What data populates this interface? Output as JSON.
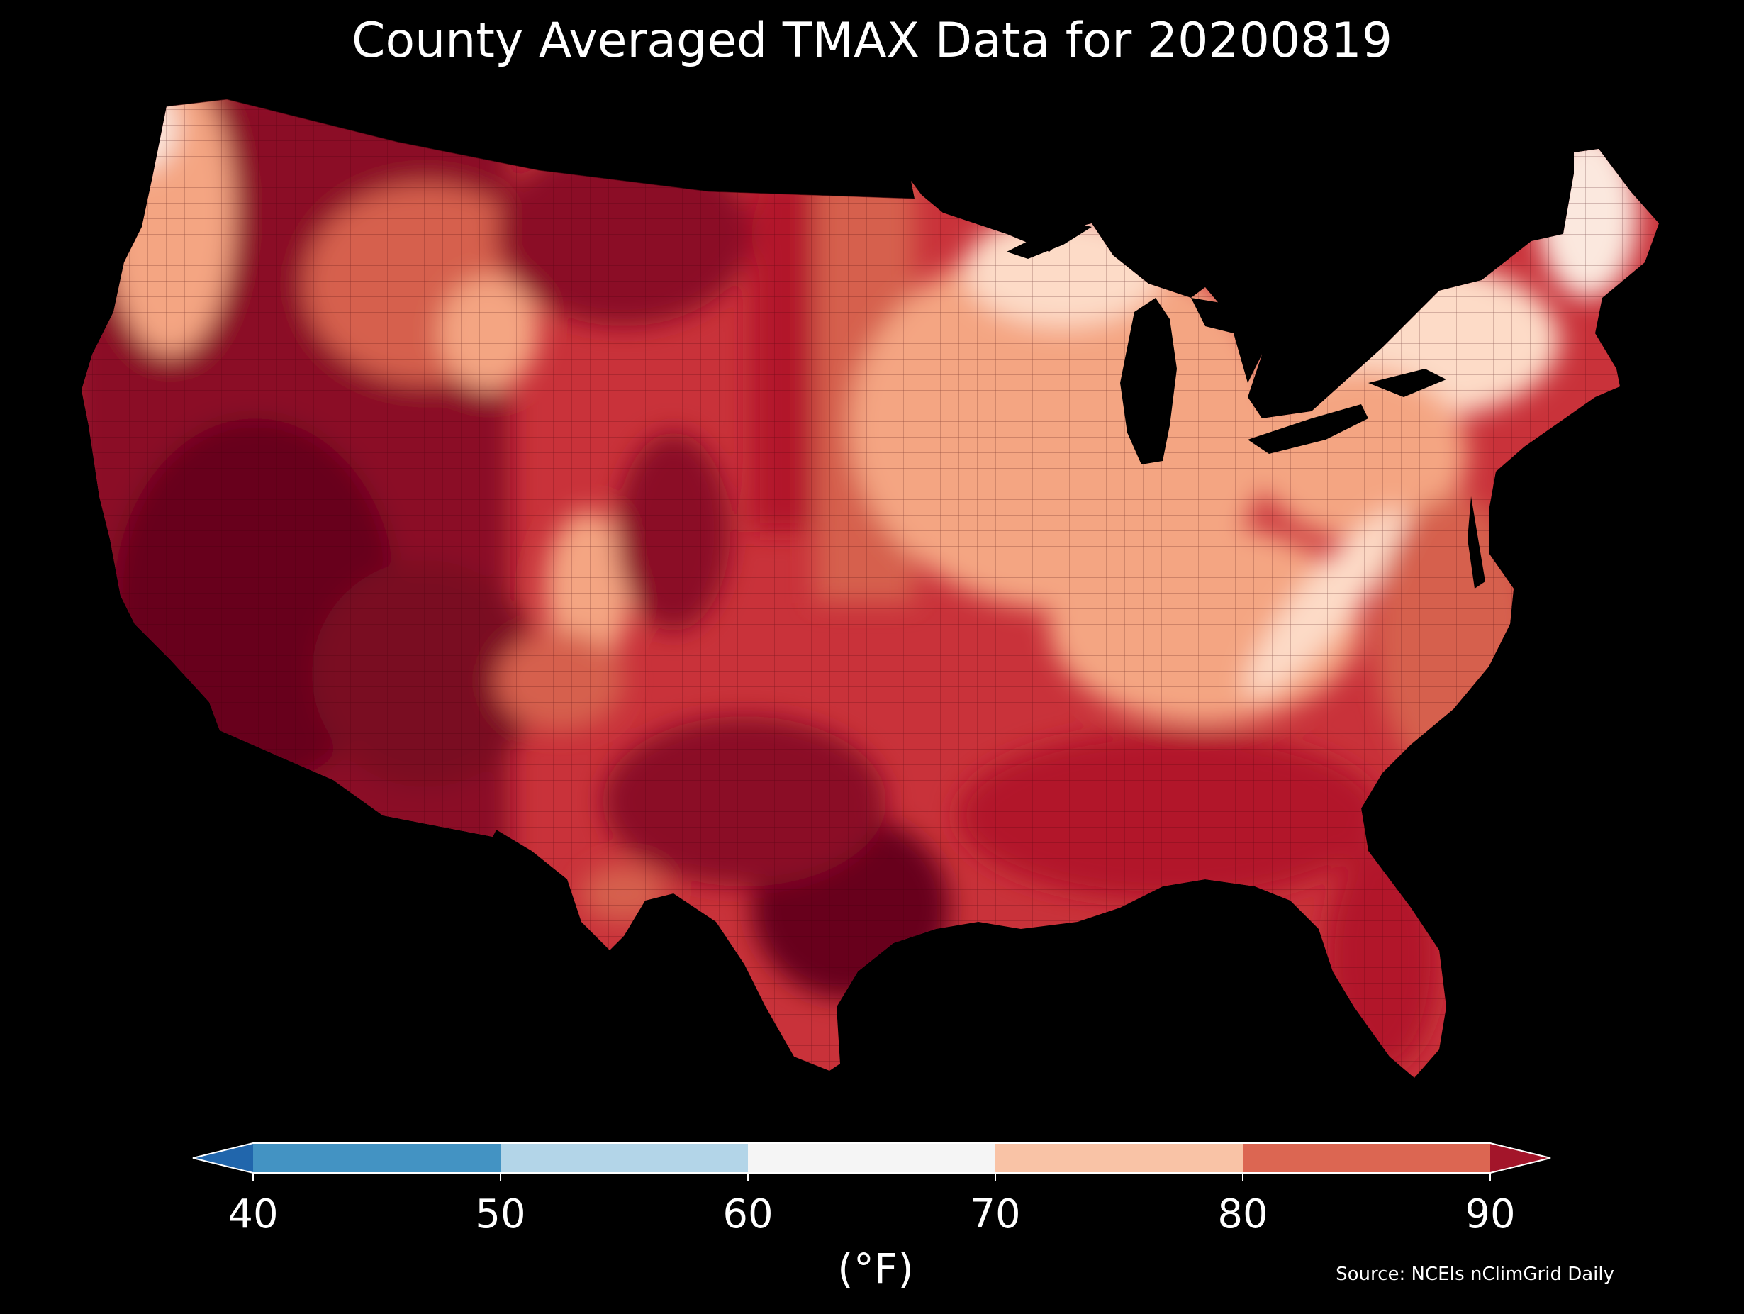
{
  "title": "County Averaged TMAX Data for 20200819",
  "source": "Source: NCEIs nClimGrid Daily",
  "colorbar": {
    "unit_label": "(°F)",
    "ticks": [
      "40",
      "50",
      "60",
      "70",
      "80",
      "90"
    ],
    "bins": [
      {
        "range": "<40",
        "color": "#2166ac"
      },
      {
        "range": "40-50",
        "color": "#4393c3"
      },
      {
        "range": "50-60",
        "color": "#b3d5e8"
      },
      {
        "range": "60-70",
        "color": "#f5f5f5"
      },
      {
        "range": "70-80",
        "color": "#f9c3a6"
      },
      {
        "range": "80-90",
        "color": "#dc6652"
      },
      {
        "range": ">90",
        "color": "#a3152a"
      }
    ]
  },
  "map": {
    "region": "Contiguous United States counties",
    "palette": {
      "hottest": "#67001f",
      "very_hot": "#8b0d26",
      "hot": "#b2182b",
      "warm": "#d6604d",
      "mild": "#f4a582",
      "cool": "#fddbc7",
      "coolest": "#fbe8de"
    }
  }
}
